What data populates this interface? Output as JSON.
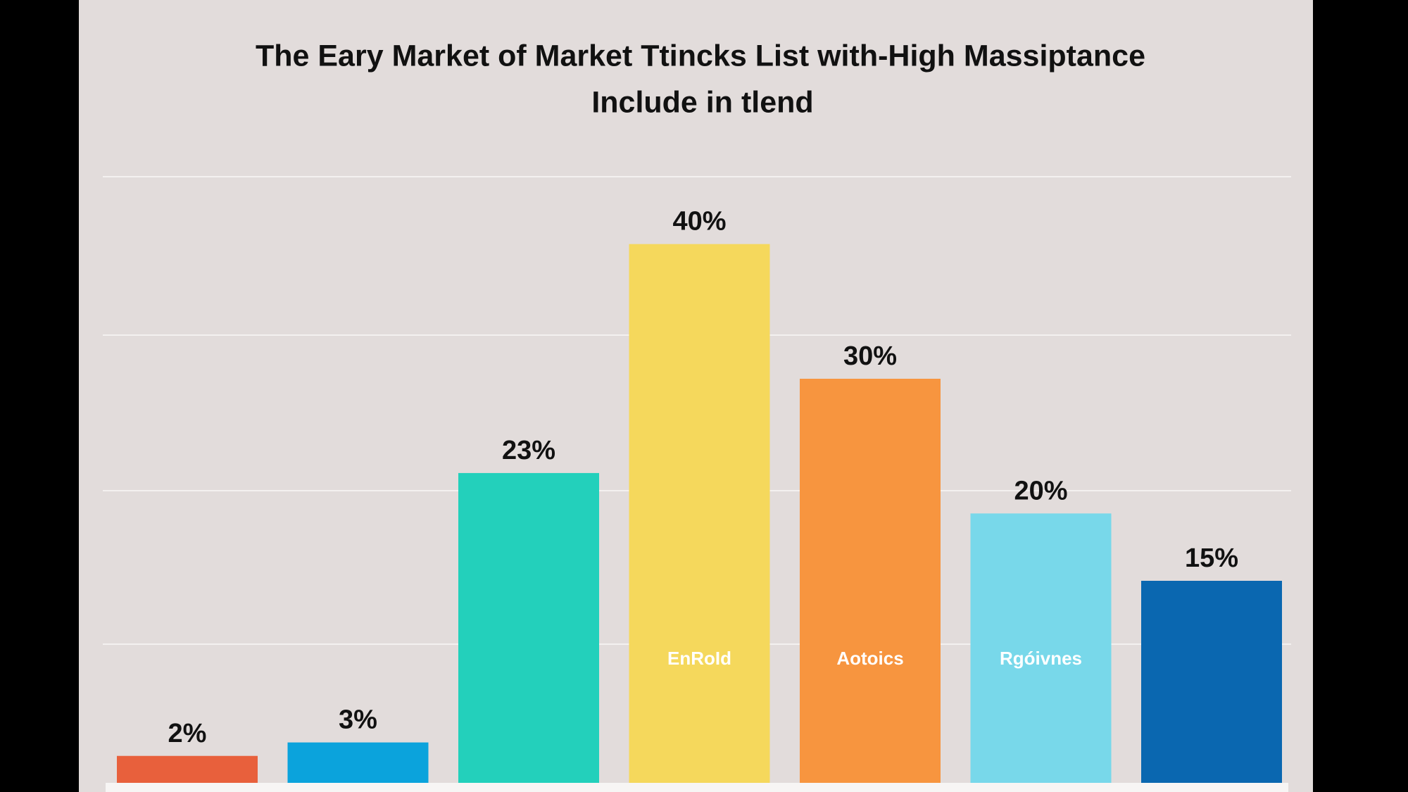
{
  "chart_data": {
    "type": "bar",
    "title": [
      "The Eary Market of Market Ttincks List with-High Massiptance",
      "Include in tlend"
    ],
    "categories": [
      null,
      null,
      null,
      null,
      null,
      null,
      null
    ],
    "values": [
      2,
      3,
      23,
      40,
      30,
      20,
      15
    ],
    "value_labels": [
      "2%",
      "3%",
      "23%",
      "40%",
      "30%",
      "20%",
      "15%"
    ],
    "bar_labels": [
      null,
      null,
      null,
      "EnRoId",
      "Aotoics",
      "Rgóivnes",
      null
    ],
    "colors": [
      "#e8603c",
      "#0ba3dc",
      "#23d0bb",
      "#f5d85c",
      "#f7953f",
      "#78d8ea",
      "#0a67b0"
    ],
    "ylim": [
      0,
      45
    ]
  }
}
